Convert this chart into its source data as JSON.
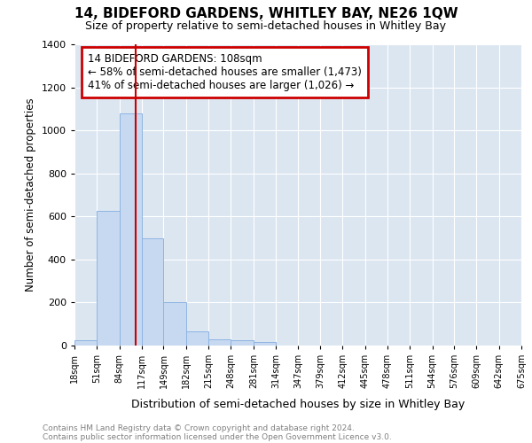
{
  "title": "14, BIDEFORD GARDENS, WHITLEY BAY, NE26 1QW",
  "subtitle": "Size of property relative to semi-detached houses in Whitley Bay",
  "xlabel": "Distribution of semi-detached houses by size in Whitley Bay",
  "ylabel": "Number of semi-detached properties",
  "footnote1": "Contains HM Land Registry data © Crown copyright and database right 2024.",
  "footnote2": "Contains public sector information licensed under the Open Government Licence v3.0.",
  "property_size": 108,
  "property_label": "14 BIDEFORD GARDENS: 108sqm",
  "pct_smaller": 58,
  "pct_larger": 41,
  "n_smaller": 1473,
  "n_larger": 1026,
  "bin_edges": [
    18,
    51,
    84,
    117,
    149,
    182,
    215,
    248,
    281,
    314,
    347,
    379,
    412,
    445,
    478,
    511,
    544,
    576,
    609,
    642,
    675
  ],
  "bin_labels": [
    "18sqm",
    "51sqm",
    "84sqm",
    "117sqm",
    "149sqm",
    "182sqm",
    "215sqm",
    "248sqm",
    "281sqm",
    "314sqm",
    "347sqm",
    "379sqm",
    "412sqm",
    "445sqm",
    "478sqm",
    "511sqm",
    "544sqm",
    "576sqm",
    "609sqm",
    "642sqm",
    "675sqm"
  ],
  "bar_heights": [
    25,
    625,
    1080,
    500,
    200,
    65,
    30,
    25,
    15,
    0,
    0,
    0,
    0,
    0,
    0,
    0,
    0,
    0,
    0,
    0
  ],
  "bar_color": "#c6d9f0",
  "bar_edge_color": "#8eb4e3",
  "background_color": "#ffffff",
  "plot_bg_color": "#dce6f1",
  "grid_color": "#ffffff",
  "vline_color": "#cc0000",
  "annotation_box_color": "#cc0000",
  "ylim": [
    0,
    1400
  ],
  "yticks": [
    0,
    200,
    400,
    600,
    800,
    1000,
    1200,
    1400
  ]
}
